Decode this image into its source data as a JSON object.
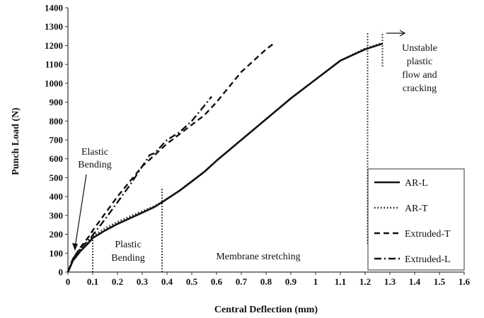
{
  "chart_data": {
    "type": "line",
    "xlabel": "Central Deflection (mm)",
    "ylabel": "Punch Load (N)",
    "xlim": [
      0,
      1.6
    ],
    "ylim": [
      0,
      1400
    ],
    "xticks": [
      "0",
      "0.1",
      "0.2",
      "0.3",
      "0.4",
      "0.5",
      "0.6",
      "0.7",
      "0.8",
      "0.9",
      "1",
      "1.1",
      "1.2",
      "1.3",
      "1.4",
      "1.5",
      "1.6"
    ],
    "yticks": [
      "0",
      "100",
      "200",
      "300",
      "400",
      "500",
      "600",
      "700",
      "800",
      "900",
      "1000",
      "1100",
      "1200",
      "1300",
      "1400"
    ],
    "grid": false,
    "legend_position": "bottom-right",
    "series": [
      {
        "name": "AR-L",
        "style": "solid",
        "x": [
          0,
          0.02,
          0.05,
          0.08,
          0.1,
          0.15,
          0.2,
          0.25,
          0.3,
          0.35,
          0.38,
          0.45,
          0.5,
          0.55,
          0.6,
          0.7,
          0.8,
          0.9,
          1.0,
          1.1,
          1.2,
          1.27
        ],
        "y": [
          0,
          60,
          110,
          150,
          180,
          220,
          255,
          285,
          315,
          345,
          370,
          430,
          480,
          530,
          590,
          700,
          810,
          920,
          1020,
          1120,
          1180,
          1210
        ]
      },
      {
        "name": "AR-T",
        "style": "dotted",
        "x": [
          0,
          0.02,
          0.05,
          0.08,
          0.1,
          0.15,
          0.2,
          0.25,
          0.3,
          0.35,
          0.38,
          0.45,
          0.5,
          0.55,
          0.6,
          0.7,
          0.8,
          0.9,
          1.0,
          1.1,
          1.2,
          1.26
        ],
        "y": [
          0,
          70,
          120,
          160,
          190,
          232,
          265,
          295,
          322,
          350,
          372,
          432,
          482,
          532,
          590,
          700,
          810,
          920,
          1020,
          1120,
          1185,
          1210
        ]
      },
      {
        "name": "Extruded-T",
        "style": "dashed",
        "x": [
          0,
          0.02,
          0.05,
          0.08,
          0.1,
          0.15,
          0.2,
          0.25,
          0.3,
          0.35,
          0.4,
          0.45,
          0.5,
          0.55,
          0.6,
          0.65,
          0.7,
          0.75,
          0.8,
          0.83
        ],
        "y": [
          0,
          70,
          130,
          180,
          220,
          310,
          400,
          480,
          560,
          620,
          680,
          730,
          780,
          830,
          900,
          980,
          1060,
          1120,
          1180,
          1210
        ]
      },
      {
        "name": "Extruded-L",
        "style": "dashdot",
        "x": [
          0,
          0.02,
          0.05,
          0.08,
          0.1,
          0.15,
          0.2,
          0.25,
          0.3,
          0.33,
          0.35,
          0.4,
          0.45,
          0.5,
          0.55,
          0.58
        ],
        "y": [
          0,
          70,
          125,
          165,
          195,
          280,
          370,
          460,
          560,
          620,
          630,
          700,
          740,
          800,
          880,
          930
        ]
      }
    ],
    "vertical_markers": [
      {
        "x": 0.1,
        "y_from": 0,
        "y_to": 215
      },
      {
        "x": 0.38,
        "y_from": 0,
        "y_to": 450
      },
      {
        "x": 1.21,
        "y_from": 150,
        "y_to": 1270
      },
      {
        "x": 1.27,
        "y_from": 1090,
        "y_to": 1270
      }
    ],
    "annotations": {
      "elastic_line1": "Elastic",
      "elastic_line2": "Bending",
      "plastic_line1": "Plastic",
      "plastic_line2": "Bending",
      "membrane": "Membrane stretching",
      "unstable_line1": "Unstable",
      "unstable_line2": "plastic",
      "unstable_line3": "flow and",
      "unstable_line4": "cracking"
    }
  }
}
